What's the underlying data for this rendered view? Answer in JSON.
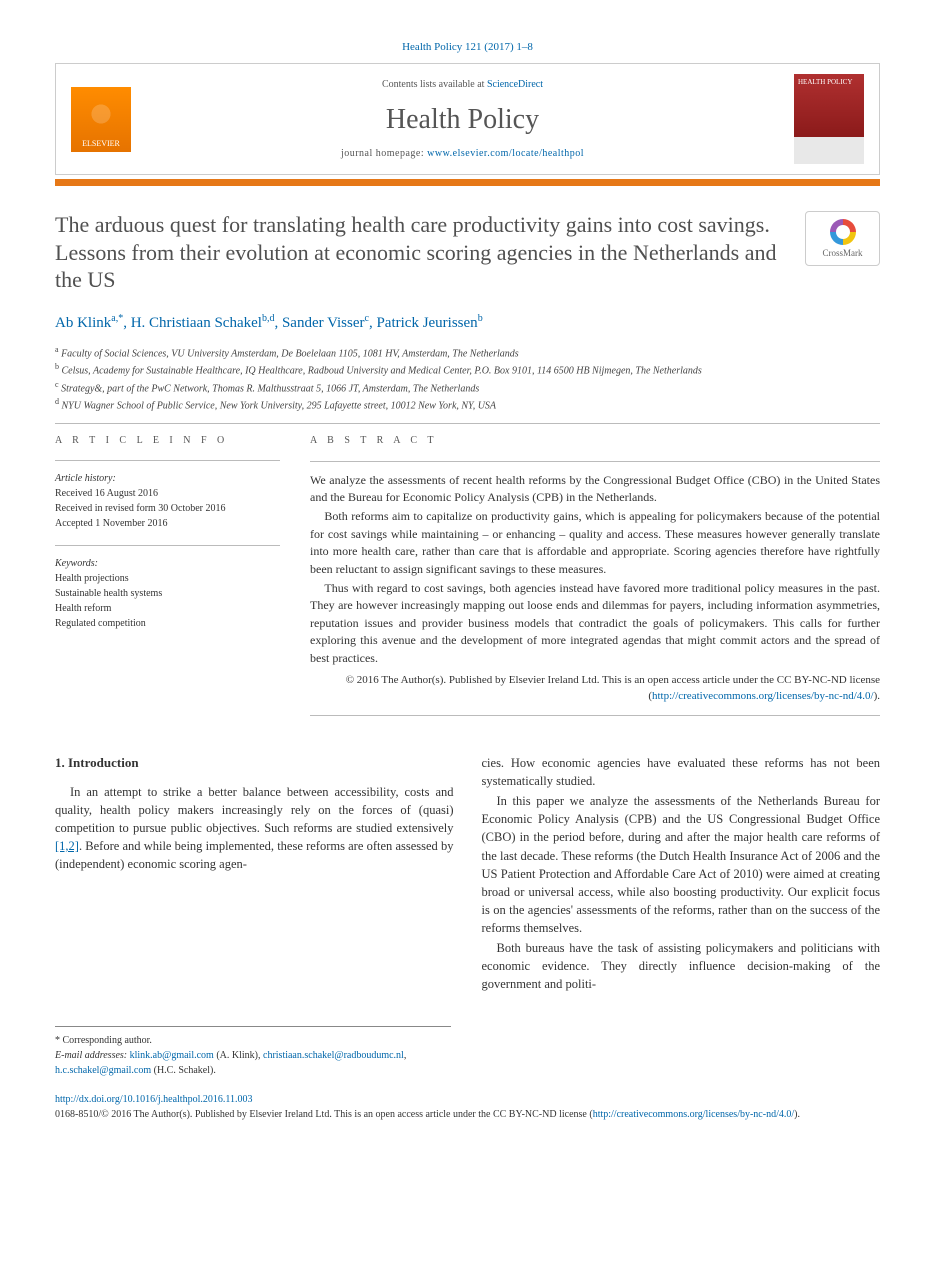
{
  "colors": {
    "link": "#0066aa",
    "accent_bar": "#e67817",
    "elsevier_orange": "#ff8c00",
    "text": "#333333",
    "title_gray": "#505050",
    "border": "#cccccc",
    "cover_red": "#8b1a1a"
  },
  "header": {
    "citation": "Health Policy 121 (2017) 1–8",
    "contents_prefix": "Contents lists available at ",
    "contents_link": "ScienceDirect",
    "journal_name": "Health Policy",
    "homepage_prefix": "journal homepage: ",
    "homepage_url": "www.elsevier.com/locate/healthpol",
    "elsevier_label": "ELSEVIER",
    "cover_text": "HEALTH POLICY"
  },
  "crossmark_label": "CrossMark",
  "article": {
    "title": "The arduous quest for translating health care productivity gains into cost savings. Lessons from their evolution at economic scoring agencies in the Netherlands and the US",
    "authors_html": "Ab Klink",
    "authors": [
      {
        "name": "Ab Klink",
        "sup": "a,*"
      },
      {
        "name": "H. Christiaan Schakel",
        "sup": "b,d"
      },
      {
        "name": "Sander Visser",
        "sup": "c"
      },
      {
        "name": "Patrick Jeurissen",
        "sup": "b"
      }
    ],
    "affiliations": [
      {
        "sup": "a",
        "text": "Faculty of Social Sciences, VU University Amsterdam, De Boelelaan 1105, 1081 HV, Amsterdam, The Netherlands"
      },
      {
        "sup": "b",
        "text": "Celsus, Academy for Sustainable Healthcare, IQ Healthcare, Radboud University and Medical Center, P.O. Box 9101, 114 6500 HB Nijmegen, The Netherlands"
      },
      {
        "sup": "c",
        "text": "Strategy&, part of the PwC Network, Thomas R. Malthusstraat 5, 1066 JT, Amsterdam, The Netherlands"
      },
      {
        "sup": "d",
        "text": "NYU Wagner School of Public Service, New York University, 295 Lafayette street, 10012 New York, NY, USA"
      }
    ]
  },
  "info": {
    "heading": "a r t i c l e   i n f o",
    "history_label": "Article history:",
    "history": [
      "Received 16 August 2016",
      "Received in revised form 30 October 2016",
      "Accepted 1 November 2016"
    ],
    "keywords_label": "Keywords:",
    "keywords": [
      "Health projections",
      "Sustainable health systems",
      "Health reform",
      "Regulated competition"
    ]
  },
  "abstract": {
    "heading": "a b s t r a c t",
    "paragraphs": [
      "We analyze the assessments of recent health reforms by the Congressional Budget Office (CBO) in the United States and the Bureau for Economic Policy Analysis (CPB) in the Netherlands.",
      "Both reforms aim to capitalize on productivity gains, which is appealing for policymakers because of the potential for cost savings while maintaining – or enhancing – quality and access. These measures however generally translate into more health care, rather than care that is affordable and appropriate. Scoring agencies therefore have rightfully been reluctant to assign significant savings to these measures.",
      "Thus with regard to cost savings, both agencies instead have favored more traditional policy measures in the past. They are however increasingly mapping out loose ends and dilemmas for payers, including information asymmetries, reputation issues and provider business models that contradict the goals of policymakers. This calls for further exploring this avenue and the development of more integrated agendas that might commit actors and the spread of best practices."
    ],
    "copyright": "© 2016 The Author(s). Published by Elsevier Ireland Ltd. This is an open access article under the CC BY-NC-ND license (",
    "license_url": "http://creativecommons.org/licenses/by-nc-nd/4.0/",
    "copyright_close": ")."
  },
  "body": {
    "section_num": "1.",
    "section_title": "Introduction",
    "paragraphs": [
      "In an attempt to strike a better balance between accessibility, costs and quality, health policy makers increasingly rely on the forces of (quasi) competition to pursue public objectives. Such reforms are studied extensively [1,2]. Before and while being implemented, these reforms are often assessed by (independent) economic scoring agen-",
      "cies. How economic agencies have evaluated these reforms has not been systematically studied.",
      "In this paper we analyze the assessments of the Netherlands Bureau for Economic Policy Analysis (CPB) and the US Congressional Budget Office (CBO) in the period before, during and after the major health care reforms of the last decade. These reforms (the Dutch Health Insurance Act of 2006 and the US Patient Protection and Affordable Care Act of 2010) were aimed at creating broad or universal access, while also boosting productivity. Our explicit focus is on the agencies' assessments of the reforms, rather than on the success of the reforms themselves.",
      "Both bureaus have the task of assisting policymakers and politicians with economic evidence. They directly influence decision-making of the government and politi-"
    ],
    "ref_links": "[1,2]"
  },
  "footnotes": {
    "corresponding": "Corresponding author.",
    "email_label": "E-mail addresses:",
    "emails": [
      {
        "addr": "klink.ab@gmail.com",
        "who": "(A. Klink),"
      },
      {
        "addr": "christiaan.schakel@radboudumc.nl",
        "who": ","
      },
      {
        "addr": "h.c.schakel@gmail.com",
        "who": "(H.C. Schakel)."
      }
    ]
  },
  "doi": {
    "url": "http://dx.doi.org/10.1016/j.healthpol.2016.11.003",
    "issn_line": "0168-8510/© 2016 The Author(s). Published by Elsevier Ireland Ltd. This is an open access article under the CC BY-NC-ND license (",
    "license_url": "http://creativecommons.org/licenses/by-nc-nd/4.0/",
    "close": ")."
  }
}
